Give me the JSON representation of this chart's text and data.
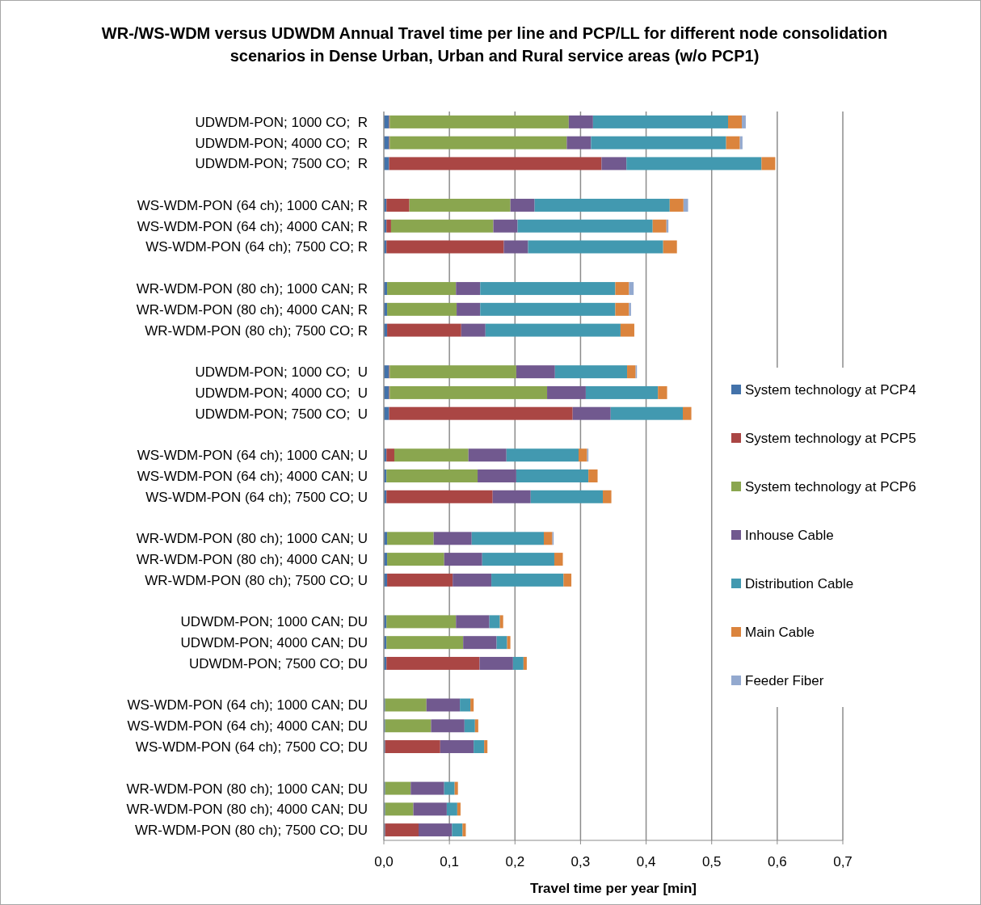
{
  "chart_data": {
    "type": "bar",
    "orientation": "horizontal",
    "stacked": true,
    "title": "WR-/WS-WDM versus UDWDM Annual Travel time per line and PCP/LL for different node consolidation scenarios in Dense Urban, Urban and Rural service areas (w/o PCP1)",
    "xlabel": "Travel time per year [min]",
    "categories": [
      "UDWDM-PON; 1000 CO;  R",
      "UDWDM-PON; 4000 CO;  R",
      "UDWDM-PON; 7500 CO;  R",
      null,
      "WS-WDM-PON (64 ch); 1000 CAN; R",
      "WS-WDM-PON (64 ch); 4000 CAN; R",
      "WS-WDM-PON (64 ch); 7500 CO; R",
      null,
      "WR-WDM-PON (80 ch); 1000 CAN; R",
      "WR-WDM-PON (80 ch); 4000 CAN; R",
      "WR-WDM-PON (80 ch); 7500 CO; R",
      null,
      "UDWDM-PON; 1000 CO;  U",
      "UDWDM-PON; 4000 CO;  U",
      "UDWDM-PON; 7500 CO;  U",
      null,
      "WS-WDM-PON (64 ch); 1000 CAN; U",
      "WS-WDM-PON (64 ch); 4000 CAN; U",
      "WS-WDM-PON (64 ch); 7500 CO; U",
      null,
      "WR-WDM-PON (80 ch); 1000 CAN; U",
      "WR-WDM-PON (80 ch); 4000 CAN; U",
      "WR-WDM-PON (80 ch); 7500 CO; U",
      null,
      "UDWDM-PON; 1000 CAN; DU",
      "UDWDM-PON; 4000 CAN; DU",
      "UDWDM-PON; 7500 CO; DU",
      null,
      "WS-WDM-PON (64 ch); 1000 CAN; DU",
      "WS-WDM-PON (64 ch); 4000 CAN; DU",
      "WS-WDM-PON (64 ch); 7500 CO; DU",
      null,
      "WR-WDM-PON (80 ch); 1000 CAN; DU",
      "WR-WDM-PON (80 ch); 4000 CAN; DU",
      "WR-WDM-PON (80 ch); 7500 CO; DU"
    ],
    "series": [
      {
        "name": "System technology at PCP4",
        "color": "#4372aa",
        "values": [
          0.008,
          0.008,
          0.008,
          null,
          0.004,
          0.004,
          0.004,
          null,
          0.005,
          0.005,
          0.005,
          null,
          0.008,
          0.008,
          0.008,
          null,
          0.004,
          0.004,
          0.004,
          null,
          0.005,
          0.005,
          0.005,
          null,
          0.004,
          0.004,
          0.004,
          null,
          0.002,
          0.002,
          0.002,
          null,
          0.002,
          0.002,
          0.002
        ]
      },
      {
        "name": "System technology at PCP5",
        "color": "#aa4644",
        "values": [
          0.001,
          0.001,
          0.324,
          null,
          0.035,
          0.007,
          0.179,
          null,
          0,
          0,
          0.113,
          null,
          0.001,
          0.001,
          0.28,
          null,
          0.012,
          0,
          0.162,
          null,
          0,
          0,
          0.1,
          null,
          0,
          0,
          0.142,
          null,
          0,
          0,
          0.084,
          null,
          0,
          0,
          0.051
        ]
      },
      {
        "name": "System technology at PCP6",
        "color": "#8aa64f",
        "values": [
          0.273,
          0.27,
          0,
          null,
          0.154,
          0.156,
          0,
          null,
          0.105,
          0.106,
          0,
          null,
          0.193,
          0.24,
          0,
          null,
          0.113,
          0.139,
          0,
          null,
          0.071,
          0.087,
          0,
          null,
          0.106,
          0.117,
          0,
          null,
          0.063,
          0.07,
          0,
          null,
          0.039,
          0.043,
          0
        ]
      },
      {
        "name": "Inhouse Cable",
        "color": "#71598f",
        "values": [
          0.037,
          0.037,
          0.038,
          null,
          0.037,
          0.037,
          0.037,
          null,
          0.037,
          0.036,
          0.037,
          null,
          0.059,
          0.059,
          0.058,
          null,
          0.058,
          0.059,
          0.058,
          null,
          0.058,
          0.058,
          0.059,
          null,
          0.051,
          0.051,
          0.051,
          null,
          0.051,
          0.051,
          0.051,
          null,
          0.051,
          0.051,
          0.051
        ]
      },
      {
        "name": "Distribution Cable",
        "color": "#4299b0",
        "values": [
          0.206,
          0.206,
          0.206,
          null,
          0.206,
          0.206,
          0.206,
          null,
          0.206,
          0.206,
          0.206,
          null,
          0.11,
          0.11,
          0.11,
          null,
          0.11,
          0.11,
          0.11,
          null,
          0.11,
          0.11,
          0.11,
          null,
          0.016,
          0.016,
          0.016,
          null,
          0.016,
          0.016,
          0.016,
          null,
          0.016,
          0.016,
          0.016
        ]
      },
      {
        "name": "Main Cable",
        "color": "#db843d",
        "values": [
          0.021,
          0.021,
          0.021,
          null,
          0.021,
          0.021,
          0.021,
          null,
          0.021,
          0.021,
          0.021,
          null,
          0.013,
          0.014,
          0.013,
          null,
          0.013,
          0.014,
          0.013,
          null,
          0.013,
          0.013,
          0.012,
          null,
          0.005,
          0.005,
          0.005,
          null,
          0.005,
          0.005,
          0.005,
          null,
          0.005,
          0.005,
          0.005
        ]
      },
      {
        "name": "Feeder Fiber",
        "color": "#93a9cf",
        "values": [
          0.006,
          0.004,
          0,
          null,
          0.007,
          0.003,
          0,
          null,
          0.007,
          0.003,
          0,
          null,
          0.002,
          0,
          0,
          null,
          0.002,
          0,
          0,
          null,
          0.002,
          0,
          0,
          null,
          0,
          0,
          0,
          null,
          0,
          0,
          0,
          null,
          0,
          0,
          0
        ]
      }
    ],
    "xlim": [
      0,
      0.7
    ],
    "xticks": [
      {
        "value": 0,
        "label": "0,0"
      },
      {
        "value": 0.1,
        "label": "0,1"
      },
      {
        "value": 0.2,
        "label": "0,2"
      },
      {
        "value": 0.3,
        "label": "0,3"
      },
      {
        "value": 0.4,
        "label": "0,4"
      },
      {
        "value": 0.5,
        "label": "0,5"
      },
      {
        "value": 0.6,
        "label": "0,6"
      },
      {
        "value": 0.7,
        "label": "0,7"
      }
    ],
    "grid": "x",
    "legend": "right"
  }
}
